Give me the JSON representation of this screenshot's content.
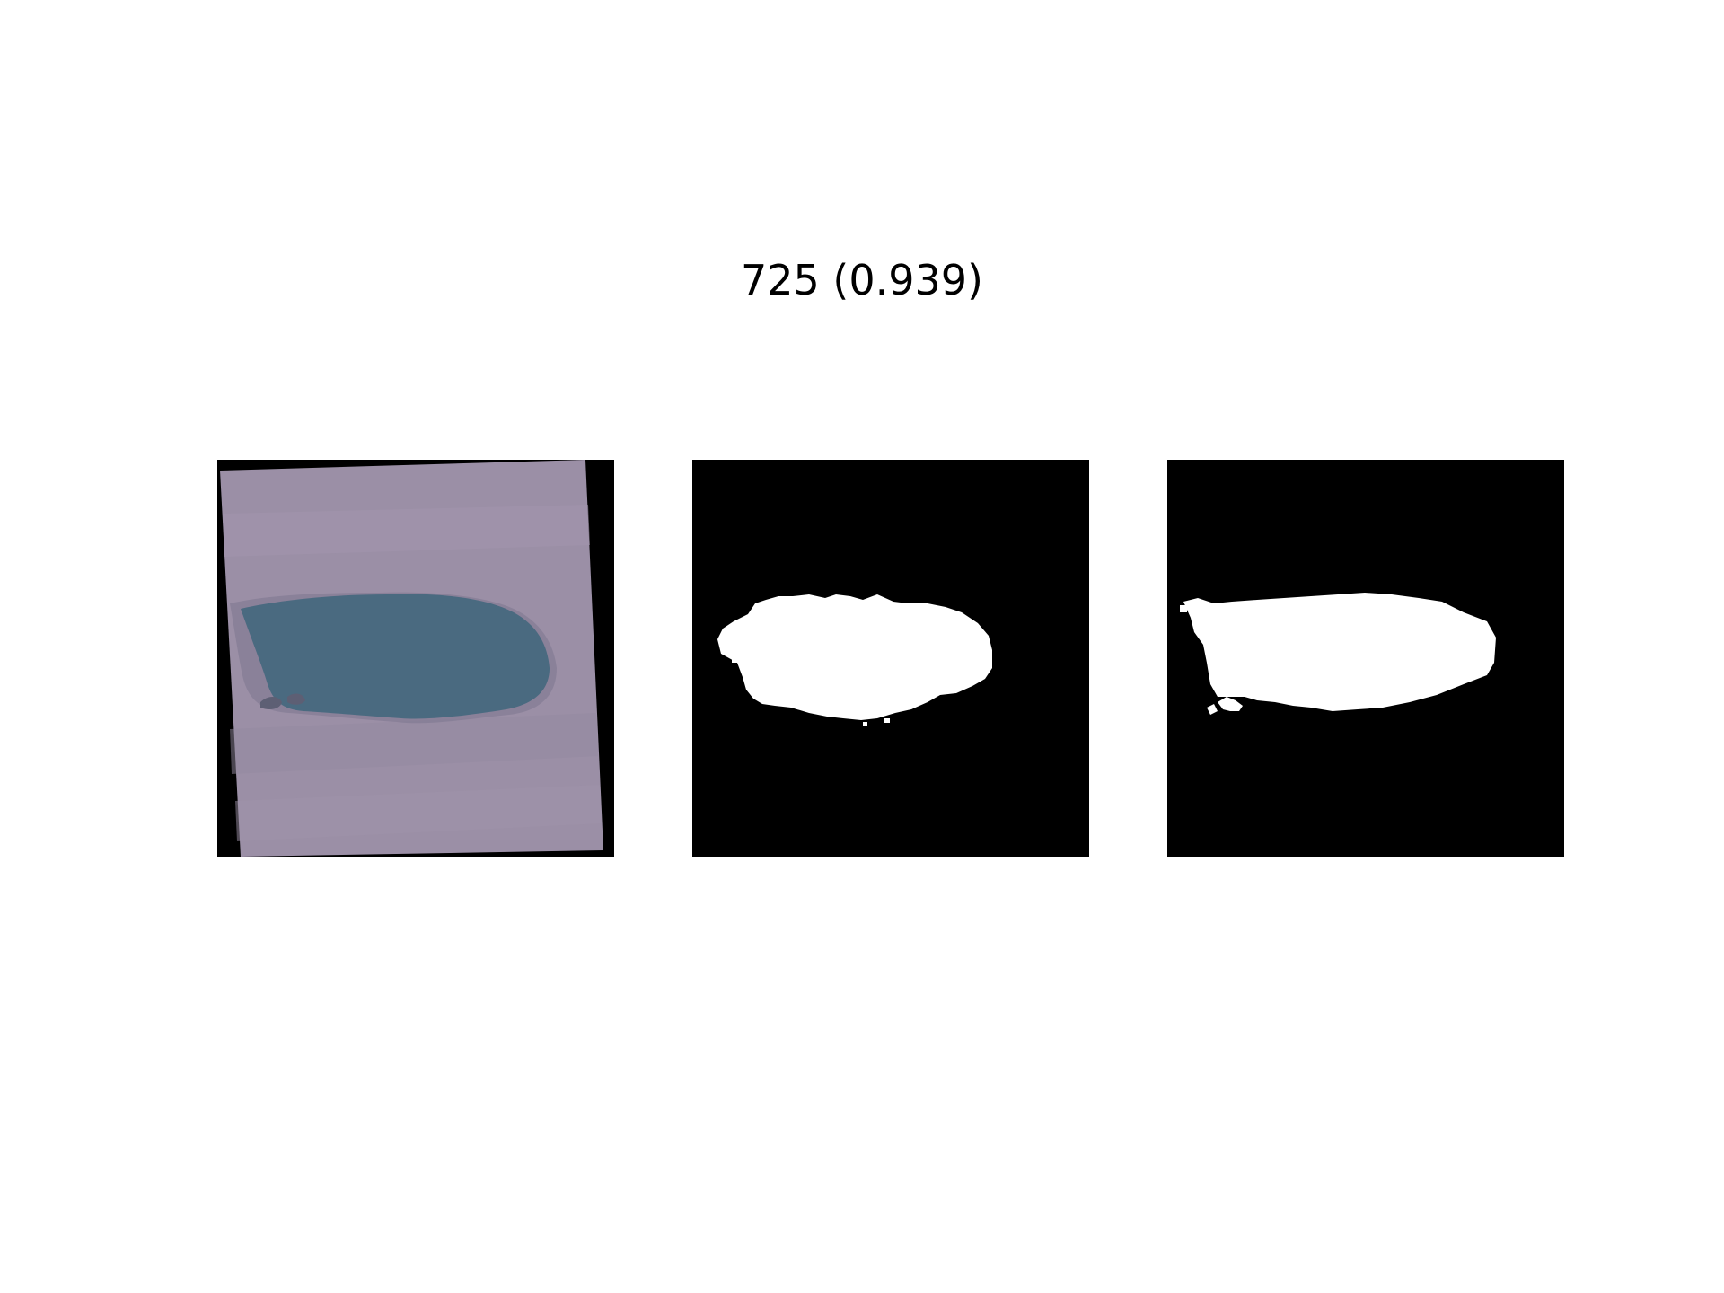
{
  "figure": {
    "title": "725 (0.939)"
  },
  "panels": [
    {
      "kind": "satellite-image",
      "depicts": "lake-in-field"
    },
    {
      "kind": "binary-mask",
      "depicts": "water-mask"
    },
    {
      "kind": "binary-mask",
      "depicts": "water-mask"
    }
  ],
  "colors": {
    "background": "#ffffff",
    "mask_background": "#000000",
    "mask_foreground": "#ffffff",
    "land": "#9b8fa6",
    "water": "#4a6a80"
  }
}
